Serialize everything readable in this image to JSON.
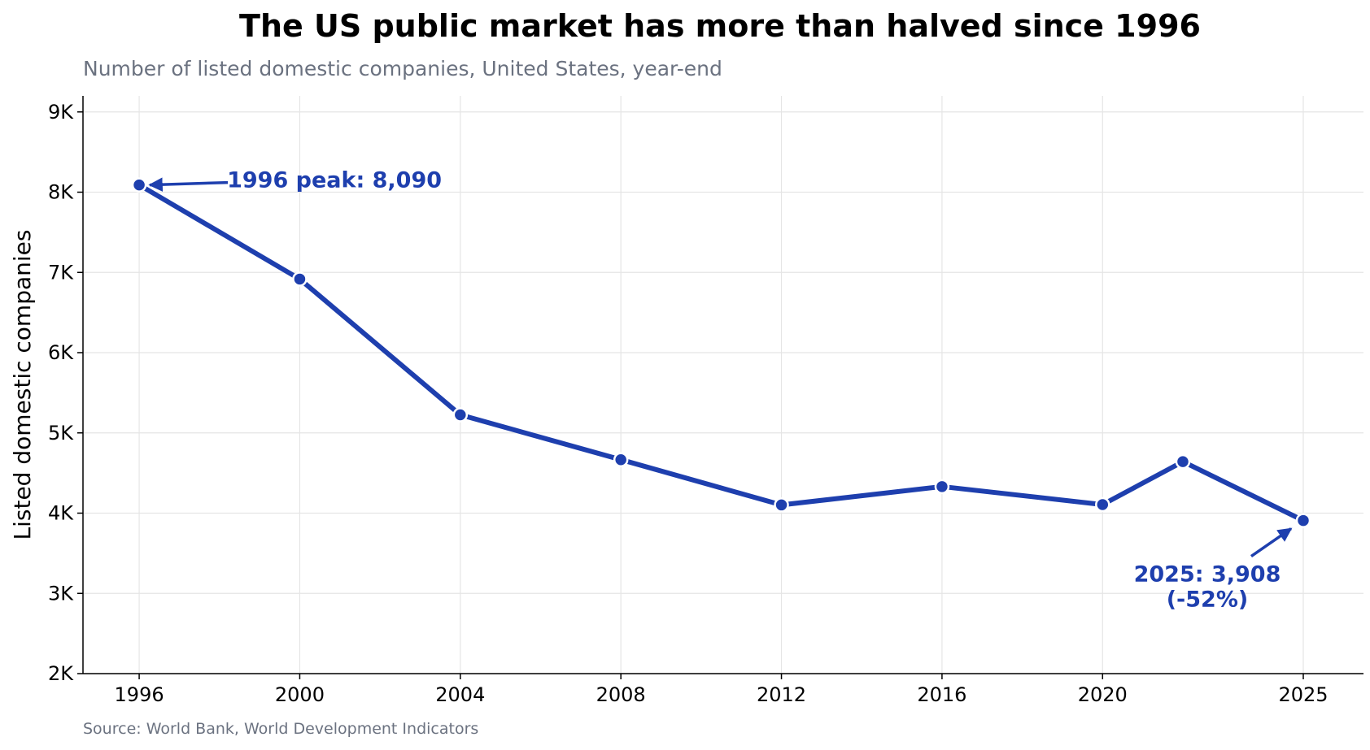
{
  "title": "The US public market has more than halved since 1996",
  "subtitle": "Number of listed domestic companies, United States, year-end",
  "source": "Source: World Bank, World Development Indicators",
  "accent_color": "#1e3fae",
  "chart_data": {
    "type": "line",
    "ylabel": "Listed domestic companies",
    "xlabel": "",
    "x": [
      1996,
      2000,
      2004,
      2008,
      2012,
      2016,
      2020,
      2022,
      2025
    ],
    "values": [
      8090,
      6917,
      5225,
      4666,
      4102,
      4331,
      4106,
      4642,
      3908
    ],
    "xticks": [
      1996,
      2000,
      2004,
      2008,
      2012,
      2016,
      2020,
      2025
    ],
    "xtick_labels": [
      "1996",
      "2000",
      "2004",
      "2008",
      "2012",
      "2016",
      "2020",
      "2025"
    ],
    "yticks": [
      2000,
      3000,
      4000,
      5000,
      6000,
      7000,
      8000,
      9000
    ],
    "ytick_labels": [
      "2K",
      "3K",
      "4K",
      "5K",
      "6K",
      "7K",
      "8K",
      "9K"
    ],
    "xlim": [
      1994.6,
      2026.5
    ],
    "ylim": [
      2000,
      9200
    ],
    "grid": true,
    "annotations": [
      {
        "label": "1996 peak: 8,090",
        "x": 1996,
        "y": 8090
      },
      {
        "label": "2025: 3,908\n(-52%)",
        "x": 2025,
        "y": 3908
      }
    ]
  }
}
